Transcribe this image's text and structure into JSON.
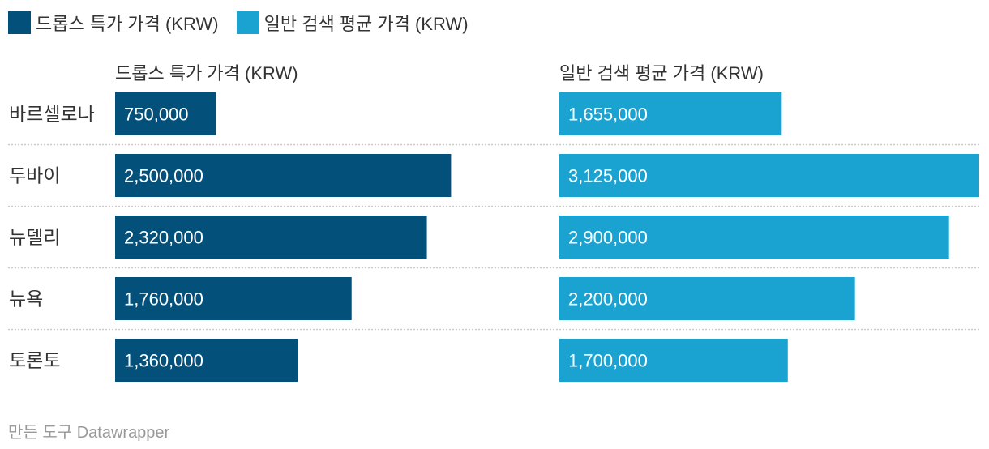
{
  "legend": [
    {
      "label": "드롭스 특가 가격 (KRW)",
      "color": "#03507a"
    },
    {
      "label": "일반 검색 평균 가격 (KRW)",
      "color": "#1aa3d1"
    }
  ],
  "footer": {
    "credit": "만든 도구 Datawrapper"
  },
  "chart_data": {
    "type": "bar",
    "orientation": "horizontal",
    "categories": [
      "바르셀로나",
      "두바이",
      "뉴델리",
      "뉴욕",
      "토론토"
    ],
    "series": [
      {
        "name": "드롭스 특가 가격 (KRW)",
        "color": "#03507a",
        "values": [
          750000,
          2500000,
          2320000,
          1760000,
          1360000
        ],
        "labels": [
          "750,000",
          "2,500,000",
          "2,320,000",
          "1,760,000",
          "1,360,000"
        ]
      },
      {
        "name": "일반 검색 평균 가격 (KRW)",
        "color": "#1aa3d1",
        "values": [
          1655000,
          3125000,
          2900000,
          2200000,
          1700000
        ],
        "labels": [
          "1,655,000",
          "3,125,000",
          "2,900,000",
          "2,200,000",
          "1,700,000"
        ]
      }
    ],
    "xlim": [
      0,
      3125000
    ],
    "grid": false,
    "legend_position": "top-left",
    "row_separators": "dotted"
  }
}
